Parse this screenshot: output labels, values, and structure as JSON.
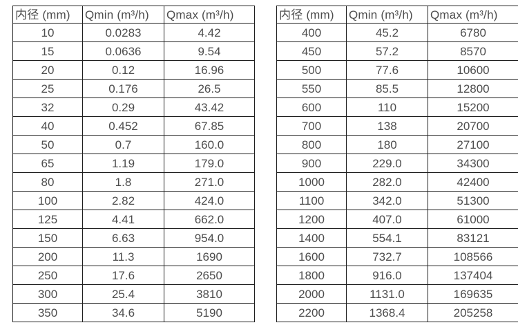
{
  "colors": {
    "background": "#ffffff",
    "border": "#1f1f1f",
    "text": "#4d4d4d"
  },
  "table_left": {
    "headers": [
      "内径 (mm)",
      "Qmin (m³/h)",
      "Qmax (m³/h)"
    ],
    "rows": [
      [
        "10",
        "0.0283",
        "4.42"
      ],
      [
        "15",
        "0.0636",
        "9.54"
      ],
      [
        "20",
        "0.12",
        "16.96"
      ],
      [
        "25",
        "0.176",
        "26.5"
      ],
      [
        "32",
        "0.29",
        "43.42"
      ],
      [
        "40",
        "0.452",
        "67.85"
      ],
      [
        "50",
        "0.7",
        "160.0"
      ],
      [
        "65",
        "1.19",
        "179.0"
      ],
      [
        "80",
        "1.8",
        "271.0"
      ],
      [
        "100",
        "2.82",
        "424.0"
      ],
      [
        "125",
        "4.41",
        "662.0"
      ],
      [
        "150",
        "6.63",
        "954.0"
      ],
      [
        "200",
        "11.3",
        "1690"
      ],
      [
        "250",
        "17.6",
        "2650"
      ],
      [
        "300",
        "25.4",
        "3810"
      ],
      [
        "350",
        "34.6",
        "5190"
      ]
    ]
  },
  "table_right": {
    "headers": [
      "内径 (mm)",
      "Qmin (m³/h)",
      "Qmax (m³/h)"
    ],
    "rows": [
      [
        "400",
        "45.2",
        "6780"
      ],
      [
        "450",
        "57.2",
        "8570"
      ],
      [
        "500",
        "77.6",
        "10600"
      ],
      [
        "550",
        "85.5",
        "12800"
      ],
      [
        "600",
        "110",
        "15200"
      ],
      [
        "700",
        "138",
        "20700"
      ],
      [
        "800",
        "180",
        "27100"
      ],
      [
        "900",
        "229.0",
        "34300"
      ],
      [
        "1000",
        "282.0",
        "42400"
      ],
      [
        "1100",
        "342.0",
        "51300"
      ],
      [
        "1200",
        "407.0",
        "61000"
      ],
      [
        "1400",
        "554.1",
        "83121"
      ],
      [
        "1600",
        "732.7",
        "108566"
      ],
      [
        "1800",
        "916.0",
        "137404"
      ],
      [
        "2000",
        "1131.0",
        "169635"
      ],
      [
        "2200",
        "1368.4",
        "205258"
      ]
    ]
  }
}
